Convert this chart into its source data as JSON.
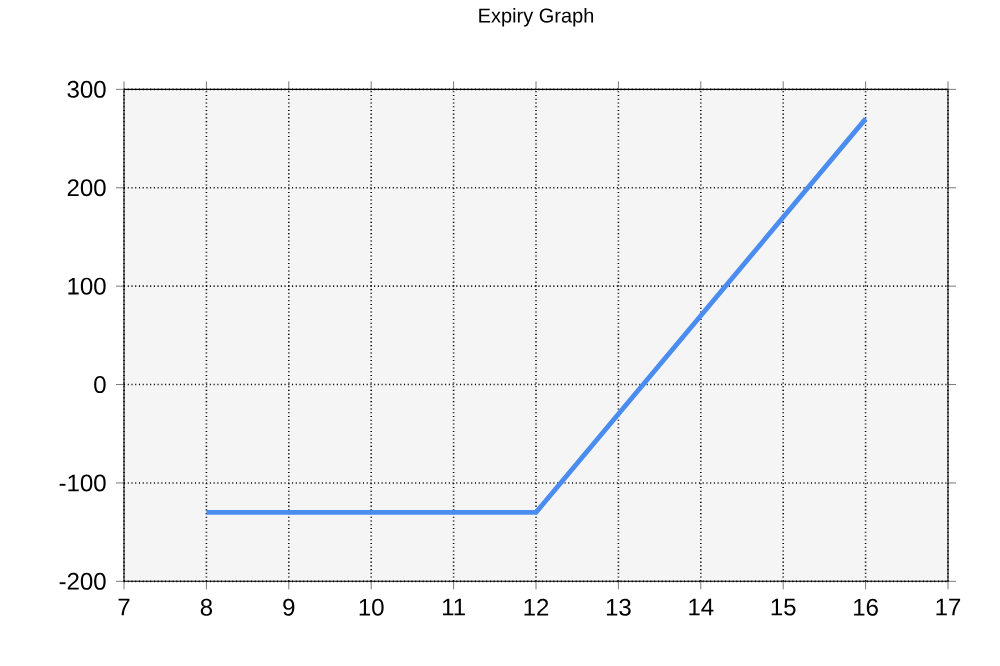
{
  "chart_data": {
    "type": "line",
    "title": "Expiry Graph",
    "x": [
      8,
      12,
      16
    ],
    "series": [
      {
        "color": "#4a8cf0",
        "values": [
          -130,
          -130,
          270
        ]
      }
    ],
    "xlim": [
      7,
      17
    ],
    "xticks": [
      7,
      8,
      9,
      10,
      11,
      12,
      13,
      14,
      15,
      16,
      17
    ],
    "ylim": [
      -200,
      300
    ],
    "yticks": [
      -200,
      -100,
      0,
      100,
      200,
      300
    ],
    "grid": true,
    "marker": "none",
    "line_style": "solid"
  }
}
